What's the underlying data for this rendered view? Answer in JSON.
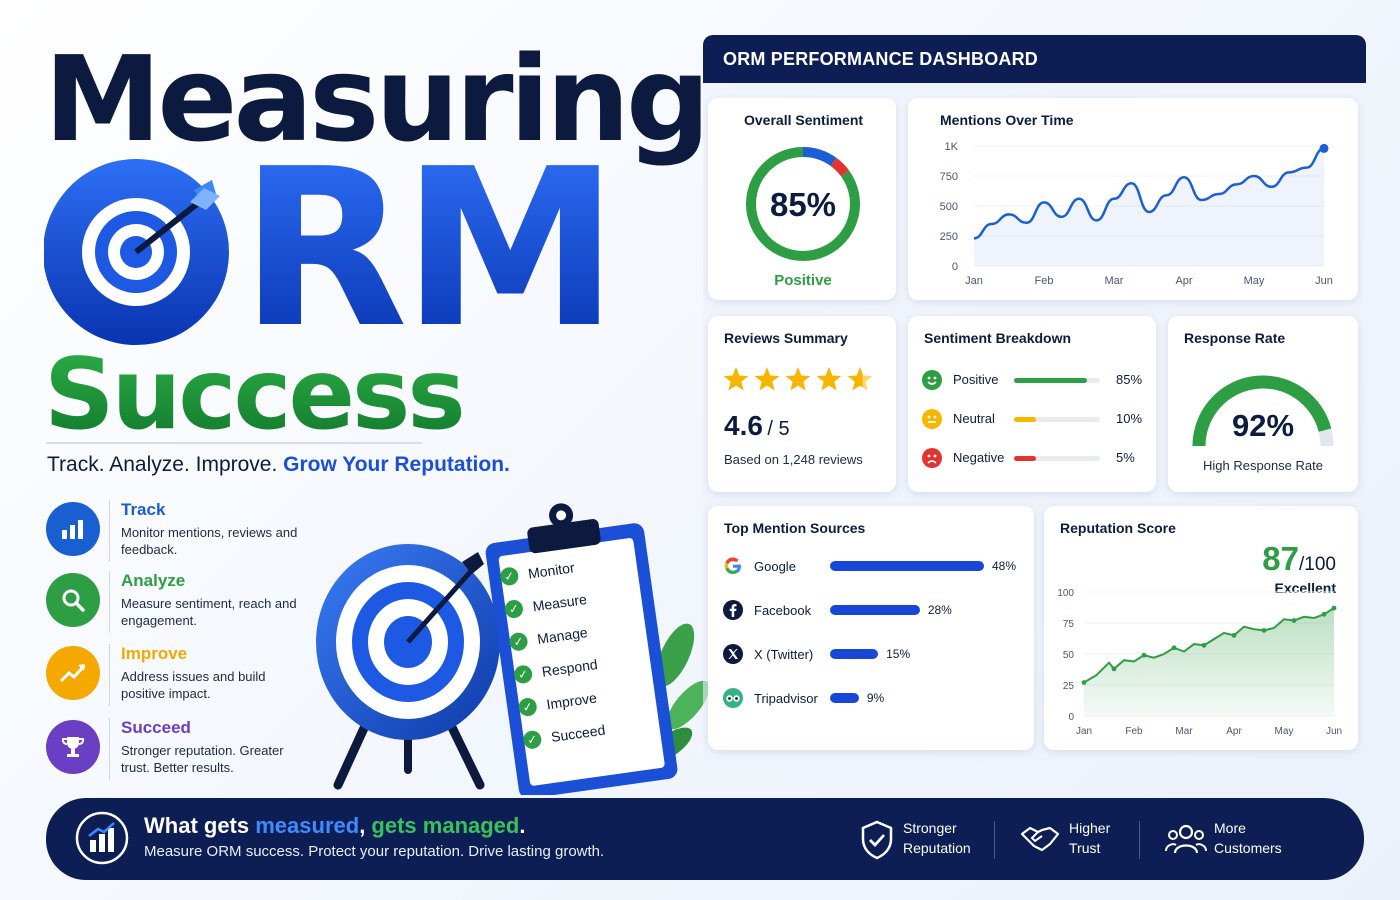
{
  "headline": {
    "line1": "Measuring",
    "line2": "RM",
    "line3": "Success",
    "tagline_plain": "Track. Analyze. Improve.",
    "tagline_highlight": "Grow Your Reputation."
  },
  "pillars": [
    {
      "title": "Track",
      "desc": "Monitor mentions, reviews and feedback.",
      "color": "#1a5fd1",
      "icon": "bar-chart-icon"
    },
    {
      "title": "Analyze",
      "desc": "Measure sentiment, reach and engagement.",
      "color": "#2e9e44",
      "icon": "magnifier-icon"
    },
    {
      "title": "Improve",
      "desc": "Address issues and build positive impact.",
      "color": "#f5a800",
      "icon": "trend-up-icon"
    },
    {
      "title": "Succeed",
      "desc": "Stronger reputation. Greater trust. Better results.",
      "color": "#6a3fc4",
      "icon": "trophy-icon"
    }
  ],
  "clipboard": {
    "items": [
      "Monitor",
      "Measure",
      "Manage",
      "Respond",
      "Improve",
      "Succeed"
    ]
  },
  "dashboard": {
    "title": "ORM PERFORMANCE DASHBOARD",
    "overall_sentiment": {
      "title": "Overall Sentiment",
      "value": "85%",
      "label": "Positive",
      "positive": 85,
      "neutral": 10,
      "negative": 5
    },
    "mentions_over_time": {
      "title": "Mentions Over Time"
    },
    "reviews_summary": {
      "title": "Reviews Summary",
      "rating": "4.6",
      "out_of": "/ 5",
      "stars": 4.6,
      "based_on": "Based on 1,248 reviews"
    },
    "sentiment_breakdown": {
      "title": "Sentiment Breakdown",
      "rows": [
        {
          "label": "Positive",
          "pct": "85%",
          "value": 85,
          "color": "#2e9e44"
        },
        {
          "label": "Neutral",
          "pct": "10%",
          "value": 10,
          "color": "#f5b800"
        },
        {
          "label": "Negative",
          "pct": "5%",
          "value": 5,
          "color": "#e23333"
        }
      ]
    },
    "response_rate": {
      "title": "Response Rate",
      "value": "92%",
      "label": "High Response Rate",
      "fraction": 0.92
    },
    "top_sources": {
      "title": "Top Mention Sources",
      "rows": [
        {
          "name": "Google",
          "pct": "48%",
          "value": 48,
          "icon": "google-icon"
        },
        {
          "name": "Facebook",
          "pct": "28%",
          "value": 28,
          "icon": "facebook-icon"
        },
        {
          "name": "X (Twitter)",
          "pct": "15%",
          "value": 15,
          "icon": "x-twitter-icon"
        },
        {
          "name": "Tripadvisor",
          "pct": "9%",
          "value": 9,
          "icon": "tripadvisor-icon"
        }
      ]
    },
    "reputation_score": {
      "title": "Reputation Score",
      "score": "87",
      "out_of": "/100",
      "label": "Excellent"
    }
  },
  "chart_data": [
    {
      "type": "line",
      "title": "Mentions Over Time",
      "categories": [
        "Jan",
        "Feb",
        "Mar",
        "Apr",
        "May",
        "Jun"
      ],
      "x": [
        0,
        0.25,
        0.5,
        0.75,
        1,
        1.25,
        1.5,
        1.75,
        2,
        2.25,
        2.5,
        2.75,
        3,
        3.25,
        3.5,
        3.75,
        4,
        4.25,
        4.5,
        4.75,
        5
      ],
      "y": [
        230,
        350,
        430,
        360,
        530,
        410,
        560,
        380,
        560,
        690,
        450,
        590,
        740,
        550,
        600,
        680,
        750,
        660,
        780,
        820,
        980
      ],
      "yticks": [
        "0",
        "250",
        "500",
        "750",
        "1K"
      ],
      "ylim": [
        0,
        1000
      ],
      "color": "#1a5fd6"
    },
    {
      "type": "area",
      "title": "Reputation Score",
      "categories": [
        "Jan",
        "Feb",
        "Mar",
        "Apr",
        "May",
        "Jun"
      ],
      "x": [
        0,
        0.25,
        0.5,
        0.6,
        0.8,
        1.0,
        1.2,
        1.4,
        1.6,
        1.8,
        2.0,
        2.2,
        2.4,
        2.6,
        2.8,
        3.0,
        3.2,
        3.4,
        3.6,
        3.8,
        4.0,
        4.2,
        4.4,
        4.6,
        4.8,
        5.0
      ],
      "y": [
        27,
        33,
        43,
        38,
        45,
        44,
        49,
        47,
        50,
        55,
        52,
        58,
        57,
        62,
        67,
        65,
        72,
        70,
        69,
        71,
        78,
        77,
        80,
        79,
        82,
        87
      ],
      "yticks": [
        "0",
        "25",
        "50",
        "75",
        "100"
      ],
      "ylim": [
        0,
        100
      ],
      "color": "#2e9e44"
    }
  ],
  "banner": {
    "title_1": "What gets ",
    "title_measured": "measured",
    "title_2": ", ",
    "title_managed": "gets managed",
    "title_3": ".",
    "subtitle": "Measure ORM success. Protect your reputation. Drive lasting growth.",
    "features": [
      {
        "line1": "Stronger",
        "line2": "Reputation",
        "icon": "shield-check-icon"
      },
      {
        "line1": "Higher",
        "line2": "Trust",
        "icon": "handshake-icon"
      },
      {
        "line1": "More",
        "line2": "Customers",
        "icon": "users-icon"
      }
    ]
  }
}
